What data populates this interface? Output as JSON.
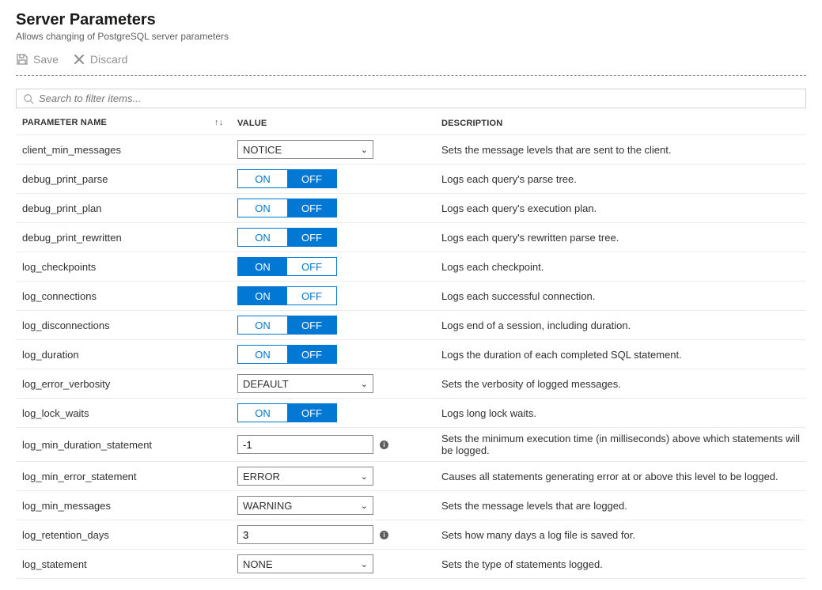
{
  "header": {
    "title": "Server Parameters",
    "subtitle": "Allows changing of PostgreSQL server parameters"
  },
  "toolbar": {
    "save_label": "Save",
    "discard_label": "Discard"
  },
  "search": {
    "placeholder": "Search to filter items..."
  },
  "columns": {
    "name": "PARAMETER NAME",
    "value": "VALUE",
    "description": "DESCRIPTION"
  },
  "toggle_labels": {
    "on": "ON",
    "off": "OFF"
  },
  "parameters": [
    {
      "name": "client_min_messages",
      "type": "select",
      "value": "NOTICE",
      "description": "Sets the message levels that are sent to the client."
    },
    {
      "name": "debug_print_parse",
      "type": "toggle",
      "value": "OFF",
      "description": "Logs each query's parse tree."
    },
    {
      "name": "debug_print_plan",
      "type": "toggle",
      "value": "OFF",
      "description": "Logs each query's execution plan."
    },
    {
      "name": "debug_print_rewritten",
      "type": "toggle",
      "value": "OFF",
      "description": "Logs each query's rewritten parse tree."
    },
    {
      "name": "log_checkpoints",
      "type": "toggle",
      "value": "ON",
      "description": "Logs each checkpoint."
    },
    {
      "name": "log_connections",
      "type": "toggle",
      "value": "ON",
      "description": "Logs each successful connection."
    },
    {
      "name": "log_disconnections",
      "type": "toggle",
      "value": "OFF",
      "description": "Logs end of a session, including duration."
    },
    {
      "name": "log_duration",
      "type": "toggle",
      "value": "OFF",
      "description": "Logs the duration of each completed SQL statement."
    },
    {
      "name": "log_error_verbosity",
      "type": "select",
      "value": "DEFAULT",
      "description": "Sets the verbosity of logged messages."
    },
    {
      "name": "log_lock_waits",
      "type": "toggle",
      "value": "OFF",
      "description": "Logs long lock waits."
    },
    {
      "name": "log_min_duration_statement",
      "type": "text",
      "value": "-1",
      "info": true,
      "description": "Sets the minimum execution time (in milliseconds) above which statements will be logged."
    },
    {
      "name": "log_min_error_statement",
      "type": "select",
      "value": "ERROR",
      "description": "Causes all statements generating error at or above this level to be logged."
    },
    {
      "name": "log_min_messages",
      "type": "select",
      "value": "WARNING",
      "description": "Sets the message levels that are logged."
    },
    {
      "name": "log_retention_days",
      "type": "text",
      "value": "3",
      "info": true,
      "description": "Sets how many days a log file is saved for."
    },
    {
      "name": "log_statement",
      "type": "select",
      "value": "NONE",
      "description": "Sets the type of statements logged."
    }
  ]
}
